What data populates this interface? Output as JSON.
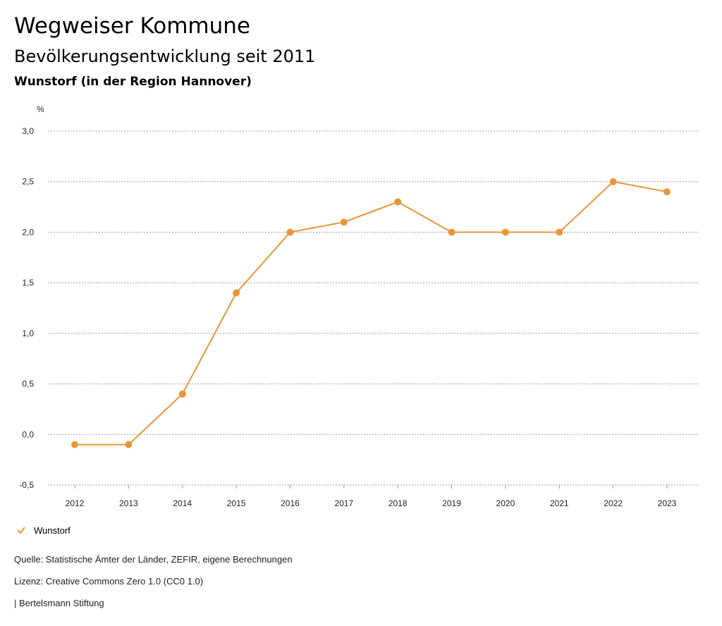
{
  "header": {
    "title": "Wegweiser Kommune",
    "subtitle": "Bevölkerungsentwicklung seit 2011",
    "region": "Wunstorf (in der Region Hannover)"
  },
  "chart_data": {
    "type": "line",
    "ylabel": "%",
    "ylim": [
      -0.5,
      3.0
    ],
    "yticks": [
      "3,0",
      "2,5",
      "2,0",
      "1,5",
      "1,0",
      "0,5",
      "0,0",
      "-0,5"
    ],
    "ytick_values": [
      3.0,
      2.5,
      2.0,
      1.5,
      1.0,
      0.5,
      0.0,
      -0.5
    ],
    "categories": [
      "2012",
      "2013",
      "2014",
      "2015",
      "2016",
      "2017",
      "2018",
      "2019",
      "2020",
      "2021",
      "2022",
      "2023"
    ],
    "series": [
      {
        "name": "Wunstorf",
        "color": "#e8963a",
        "values": [
          -0.1,
          -0.1,
          0.4,
          1.4,
          2.0,
          2.1,
          2.3,
          2.0,
          2.0,
          2.0,
          2.5,
          2.4
        ]
      }
    ],
    "grid": true,
    "legend_position": "bottom-left"
  },
  "legend": {
    "label": "Wunstorf",
    "icon": "checkmark-icon"
  },
  "footer": {
    "source": "Quelle: Statistische Ämter der Länder, ZEFIR, eigene Berechnungen",
    "license": "Lizenz: Creative Commons Zero 1.0 (CC0 1.0)",
    "publisher": "| Bertelsmann Stiftung"
  }
}
